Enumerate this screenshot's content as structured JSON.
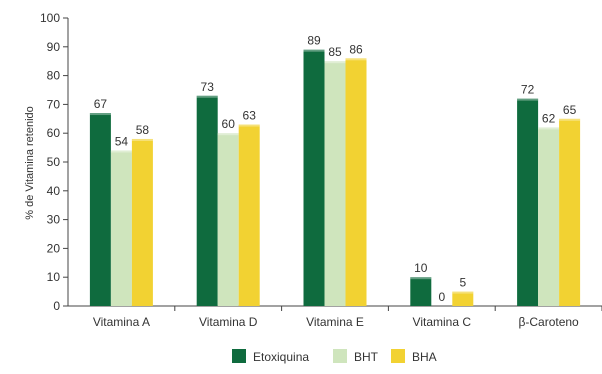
{
  "chart_data": {
    "type": "bar",
    "ylabel": "% de Vitamina retenido",
    "ylim": [
      0,
      100
    ],
    "yticks": [
      0,
      10,
      20,
      30,
      40,
      50,
      60,
      70,
      80,
      90,
      100
    ],
    "grid": false,
    "legend_position": "bottom",
    "categories": [
      "Vitamina A",
      "Vitamina D",
      "Vitamina E",
      "Vitamina C",
      "β-Caroteno"
    ],
    "series": [
      {
        "name": "Etoxiquina",
        "color": "#0f6b3e",
        "values": [
          67,
          73,
          89,
          10,
          72
        ],
        "labels": [
          "67",
          "73",
          "89",
          "10",
          "72"
        ]
      },
      {
        "name": "BHT",
        "color": "#cfe5bd",
        "values": [
          54,
          60,
          85,
          0,
          62
        ],
        "labels": [
          "54",
          "60",
          "85",
          "0",
          "62"
        ]
      },
      {
        "name": "BHA",
        "color": "#f2d232",
        "values": [
          58,
          63,
          86,
          5,
          65
        ],
        "labels": [
          "58",
          "63",
          "86",
          "5",
          "65"
        ]
      }
    ]
  }
}
